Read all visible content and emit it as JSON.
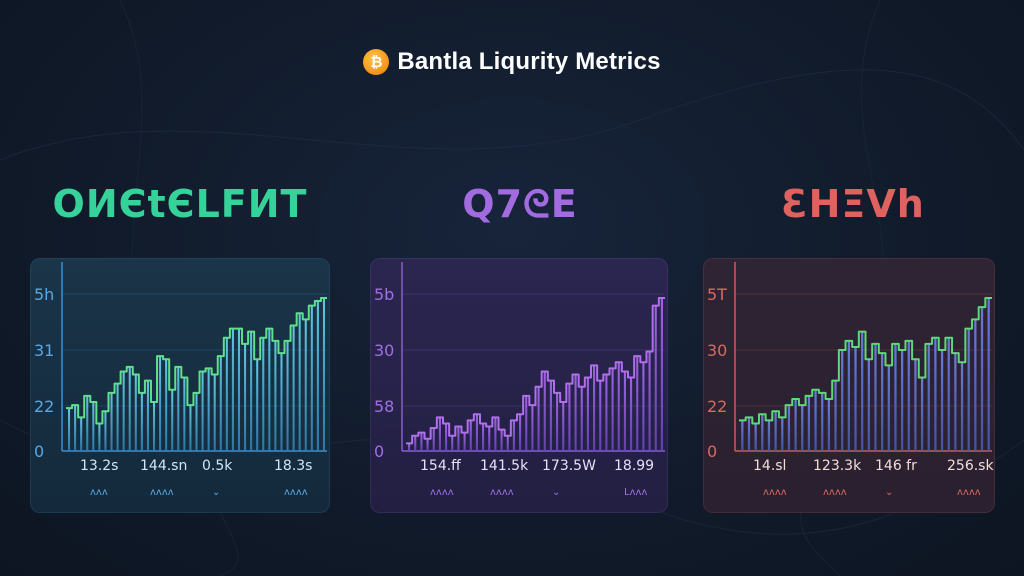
{
  "header": {
    "title": "Bantla Liqurity Metrics",
    "coin_icon": "bitcoin-icon"
  },
  "colors": {
    "background": "#111b2b",
    "green": "#35d39a",
    "purple": "#a36be0",
    "red": "#e0625f"
  },
  "chart_data": [
    {
      "type": "bar",
      "heading": "ОИЄtЄLFИT",
      "y_tick_labels": [
        "5h",
        "31",
        "22",
        "0"
      ],
      "x_tick_labels": [
        "13.2s",
        "144.sn",
        "0.5k",
        "18.3s"
      ],
      "x_sub_labels": [
        "ᴧᴧᴧ",
        "ᴧᴧᴧᴧ",
        "⌄",
        "ᴧᴧᴧᴧ"
      ],
      "ylim": [
        0,
        1
      ],
      "values": [
        0.28,
        0.3,
        0.22,
        0.36,
        0.32,
        0.18,
        0.26,
        0.38,
        0.44,
        0.52,
        0.55,
        0.5,
        0.38,
        0.46,
        0.32,
        0.62,
        0.6,
        0.4,
        0.55,
        0.48,
        0.3,
        0.38,
        0.52,
        0.54,
        0.5,
        0.62,
        0.74,
        0.8,
        0.8,
        0.7,
        0.78,
        0.6,
        0.74,
        0.8,
        0.72,
        0.64,
        0.72,
        0.82,
        0.9,
        0.86,
        0.95,
        0.98,
        1.0
      ],
      "theme": {
        "line": "#5fe08a",
        "bar_top": "#5fc8e0",
        "bar_bottom": "#2f7fae",
        "axis": "#3f8fd0",
        "tick": "#58a8e6",
        "label": "#cfe6f8",
        "heading": "#35d39a"
      }
    },
    {
      "type": "bar",
      "heading": "Q7ᘓE",
      "y_tick_labels": [
        "5b",
        "30",
        "58",
        "0"
      ],
      "x_tick_labels": [
        "154.ff",
        "141.5k",
        "173.5W",
        "18.99"
      ],
      "x_sub_labels": [
        "ᴧᴧᴧᴧ",
        "ᴧᴧᴧᴧ",
        "⌄",
        "Lᴧᴧᴧ"
      ],
      "ylim": [
        0,
        1
      ],
      "values": [
        0.05,
        0.1,
        0.12,
        0.08,
        0.15,
        0.22,
        0.18,
        0.1,
        0.16,
        0.12,
        0.2,
        0.24,
        0.18,
        0.16,
        0.22,
        0.14,
        0.1,
        0.2,
        0.24,
        0.36,
        0.3,
        0.42,
        0.52,
        0.46,
        0.38,
        0.32,
        0.44,
        0.5,
        0.42,
        0.48,
        0.56,
        0.46,
        0.5,
        0.54,
        0.58,
        0.52,
        0.48,
        0.62,
        0.58,
        0.65,
        0.95,
        1.0
      ],
      "theme": {
        "line": "#b070ec",
        "bar_top": "#a064e6",
        "bar_bottom": "#6a44b8",
        "axis": "#8a5cd6",
        "tick": "#a06ee6",
        "label": "#e8e0f6",
        "heading": "#a36be0"
      }
    },
    {
      "type": "bar",
      "heading": "ƐHΞVh",
      "y_tick_labels": [
        "5T",
        "30",
        "22",
        "0"
      ],
      "x_tick_labels": [
        "14.sl",
        "123.3k",
        "146 fr",
        "256.sk"
      ],
      "x_sub_labels": [
        "ᴧᴧᴧᴧ",
        "ᴧᴧᴧᴧ",
        "⌄",
        "ᴧᴧᴧᴧ"
      ],
      "ylim": [
        0,
        1
      ],
      "values": [
        0.2,
        0.22,
        0.18,
        0.24,
        0.2,
        0.26,
        0.22,
        0.3,
        0.34,
        0.3,
        0.36,
        0.4,
        0.38,
        0.34,
        0.46,
        0.66,
        0.72,
        0.68,
        0.78,
        0.6,
        0.7,
        0.64,
        0.56,
        0.7,
        0.66,
        0.72,
        0.6,
        0.48,
        0.7,
        0.74,
        0.66,
        0.74,
        0.64,
        0.58,
        0.8,
        0.86,
        0.94,
        1.0
      ],
      "theme": {
        "line": "#5fd878",
        "bar_top": "#6a7ad8",
        "bar_bottom": "#4858a8",
        "axis": "#d05a5a",
        "tick": "#d86a5e",
        "label": "#f4dcd6",
        "heading": "#e0625f"
      }
    }
  ]
}
